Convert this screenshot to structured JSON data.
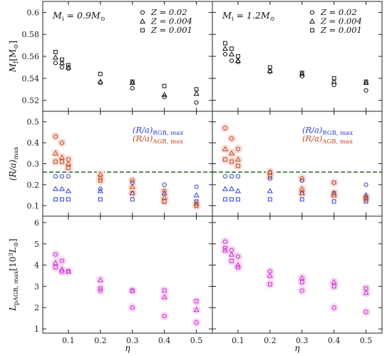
{
  "chart_data": {
    "type": "scatter",
    "x_ticks": [
      0.1,
      0.2,
      0.3,
      0.4,
      0.5
    ],
    "x_tick_labels": [
      "0.1",
      "0.2",
      "0.3",
      "0.4",
      "0.5"
    ],
    "xlabel": "η",
    "xlim": [
      0.02,
      0.55
    ],
    "columns": [
      {
        "title_main": "M",
        "title_sub": "i",
        "title_rest": " = 0.9M",
        "title_sun": "⊙"
      },
      {
        "title_main": "M",
        "title_sub": "i",
        "title_rest": " = 1.2M",
        "title_sun": "⊙"
      }
    ],
    "metallicity_legend": [
      {
        "marker": "circle",
        "label": "Z = 0.02"
      },
      {
        "marker": "triangle",
        "label": "Z = 0.004"
      },
      {
        "marker": "square",
        "label": "Z = 0.001"
      }
    ],
    "rows": [
      {
        "ylabel_main": "M",
        "ylabel_sub": "f",
        "ylabel_rest": "[M",
        "ylabel_sun": "⊙",
        "ylabel_end": "]",
        "ylim": [
          0.51,
          0.61
        ],
        "y_ticks": [
          0.52,
          0.54,
          0.56,
          0.58,
          0.6
        ],
        "y_tick_labels": [
          "0.52",
          "0.54",
          "0.56",
          "0.58",
          "0.6"
        ],
        "panels": [
          {
            "series": [
              {
                "marker": "circle",
                "color": "#111111",
                "x": [
                  0.06,
                  0.08,
                  0.1,
                  0.2,
                  0.3,
                  0.4,
                  0.5
                ],
                "y": [
                  0.554,
                  0.55,
                  0.549,
                  0.536,
                  0.531,
                  0.523,
                  0.518
                ]
              },
              {
                "marker": "triangle",
                "color": "#111111",
                "x": [
                  0.06,
                  0.08,
                  0.1,
                  0.2,
                  0.3,
                  0.4,
                  0.5
                ],
                "y": [
                  0.559,
                  0.554,
                  0.55,
                  0.537,
                  0.536,
                  0.525,
                  0.526
                ]
              },
              {
                "marker": "square",
                "color": "#111111",
                "x": [
                  0.06,
                  0.08,
                  0.1,
                  0.2,
                  0.3,
                  0.4,
                  0.5
                ],
                "y": [
                  0.564,
                  0.557,
                  0.552,
                  0.544,
                  0.537,
                  0.533,
                  0.53
                ]
              }
            ]
          },
          {
            "series": [
              {
                "marker": "circle",
                "color": "#111111",
                "x": [
                  0.06,
                  0.08,
                  0.1,
                  0.2,
                  0.3,
                  0.4,
                  0.5
                ],
                "y": [
                  0.562,
                  0.556,
                  0.555,
                  0.546,
                  0.542,
                  0.534,
                  0.529
                ]
              },
              {
                "marker": "triangle",
                "color": "#111111",
                "x": [
                  0.06,
                  0.08,
                  0.1,
                  0.2,
                  0.3,
                  0.4,
                  0.5
                ],
                "y": [
                  0.567,
                  0.562,
                  0.556,
                  0.547,
                  0.544,
                  0.537,
                  0.536
                ]
              },
              {
                "marker": "square",
                "color": "#111111",
                "x": [
                  0.06,
                  0.08,
                  0.1,
                  0.2,
                  0.3,
                  0.4,
                  0.5
                ],
                "y": [
                  0.572,
                  0.567,
                  0.56,
                  0.55,
                  0.545,
                  0.54,
                  0.537
                ]
              }
            ]
          }
        ]
      },
      {
        "ylabel_main": "(R/a)",
        "ylabel_sub": "max",
        "ylim": [
          0.05,
          0.55
        ],
        "y_ticks": [
          0.1,
          0.2,
          0.3,
          0.4,
          0.5
        ],
        "y_tick_labels": [
          "0.1",
          "0.2",
          "0.3",
          "0.4",
          "0.5"
        ],
        "hline": 0.26,
        "legend": [
          {
            "main": "(R/a)",
            "sub": "RGB, max",
            "color": "#2f3fd0"
          },
          {
            "main": "(R/a)",
            "sub": "AGB, max",
            "color": "#c24a22"
          }
        ],
        "panels": [
          {
            "series": [
              {
                "marker": "circle",
                "color": "#2f3fd0",
                "x": [
                  0.06,
                  0.08,
                  0.1,
                  0.2,
                  0.3,
                  0.4,
                  0.5
                ],
                "y": [
                  0.24,
                  0.24,
                  0.24,
                  0.18,
                  0.21,
                  0.2,
                  0.19
                ]
              },
              {
                "marker": "triangle",
                "color": "#2f3fd0",
                "x": [
                  0.06,
                  0.08,
                  0.1,
                  0.2,
                  0.3,
                  0.4,
                  0.5
                ],
                "y": [
                  0.18,
                  0.18,
                  0.17,
                  0.17,
                  0.16,
                  0.16,
                  0.15
                ]
              },
              {
                "marker": "square",
                "color": "#2f3fd0",
                "x": [
                  0.06,
                  0.08,
                  0.1,
                  0.2,
                  0.3,
                  0.4,
                  0.5
                ],
                "y": [
                  0.13,
                  0.13,
                  0.13,
                  0.13,
                  0.13,
                  0.12,
                  0.12
                ]
              },
              {
                "marker": "circle",
                "color": "#c24a22",
                "x": [
                  0.06,
                  0.08,
                  0.1,
                  0.2,
                  0.3,
                  0.4,
                  0.5
                ],
                "y": [
                  0.43,
                  0.4,
                  0.32,
                  0.23,
                  0.22,
                  0.17,
                  0.1
                ]
              },
              {
                "marker": "triangle",
                "color": "#c24a22",
                "x": [
                  0.06,
                  0.08,
                  0.1,
                  0.2,
                  0.3,
                  0.4,
                  0.5
                ],
                "y": [
                  0.35,
                  0.33,
                  0.3,
                  0.25,
                  0.19,
                  0.14,
                  0.11
                ]
              },
              {
                "marker": "square",
                "color": "#c24a22",
                "x": [
                  0.06,
                  0.08,
                  0.1,
                  0.2,
                  0.3,
                  0.4,
                  0.5
                ],
                "y": [
                  0.31,
                  0.31,
                  0.28,
                  0.22,
                  0.16,
                  0.12,
                  0.1
                ]
              }
            ]
          },
          {
            "series": [
              {
                "marker": "circle",
                "color": "#2f3fd0",
                "x": [
                  0.06,
                  0.08,
                  0.1,
                  0.2,
                  0.3,
                  0.4,
                  0.5
                ],
                "y": [
                  0.24,
                  0.24,
                  0.24,
                  0.23,
                  0.22,
                  0.21,
                  0.2
                ]
              },
              {
                "marker": "triangle",
                "color": "#2f3fd0",
                "x": [
                  0.06,
                  0.08,
                  0.1,
                  0.2,
                  0.3,
                  0.4,
                  0.5
                ],
                "y": [
                  0.18,
                  0.18,
                  0.17,
                  0.17,
                  0.16,
                  0.16,
                  0.15
                ]
              },
              {
                "marker": "square",
                "color": "#2f3fd0",
                "x": [
                  0.06,
                  0.08,
                  0.1,
                  0.2,
                  0.3,
                  0.4,
                  0.5
                ],
                "y": [
                  0.13,
                  0.13,
                  0.13,
                  0.13,
                  0.13,
                  0.12,
                  0.12
                ]
              },
              {
                "marker": "circle",
                "color": "#c24a22",
                "x": [
                  0.06,
                  0.08,
                  0.1,
                  0.2,
                  0.3,
                  0.4,
                  0.5
                ],
                "y": [
                  0.47,
                  0.42,
                  0.37,
                  0.26,
                  0.23,
                  0.21,
                  0.13
                ]
              },
              {
                "marker": "triangle",
                "color": "#c24a22",
                "x": [
                  0.06,
                  0.08,
                  0.1,
                  0.2,
                  0.3,
                  0.4,
                  0.5
                ],
                "y": [
                  0.37,
                  0.35,
                  0.32,
                  0.26,
                  0.18,
                  0.15,
                  0.14
                ]
              },
              {
                "marker": "square",
                "color": "#c24a22",
                "x": [
                  0.06,
                  0.08,
                  0.1,
                  0.2,
                  0.3,
                  0.4,
                  0.5
                ],
                "y": [
                  0.32,
                  0.31,
                  0.29,
                  0.24,
                  0.16,
                  0.16,
                  0.14
                ]
              }
            ]
          }
        ]
      },
      {
        "ylabel_main": "L",
        "ylabel_sub": "pAGB, max",
        "ylabel_rest": "[10",
        "ylabel_sup": "3",
        "ylabel_L": "L",
        "ylabel_sun": "⊙",
        "ylabel_end": "]",
        "ylim": [
          0.8,
          6.3
        ],
        "y_ticks": [
          1,
          2,
          3,
          4,
          5,
          6
        ],
        "y_tick_labels": [
          "1",
          "2",
          "3",
          "4",
          "5",
          "6"
        ],
        "panels": [
          {
            "series": [
              {
                "marker": "circle",
                "color": "#cc33cc",
                "x": [
                  0.06,
                  0.08,
                  0.1,
                  0.2,
                  0.3,
                  0.4,
                  0.5
                ],
                "y": [
                  4.5,
                  4.2,
                  3.7,
                  2.8,
                  2.0,
                  1.6,
                  1.3
                ]
              },
              {
                "marker": "triangle",
                "color": "#cc33cc",
                "x": [
                  0.06,
                  0.08,
                  0.1,
                  0.2,
                  0.3,
                  0.4,
                  0.5
                ],
                "y": [
                  4.1,
                  3.8,
                  3.7,
                  3.3,
                  2.8,
                  2.5,
                  1.9
                ]
              },
              {
                "marker": "square",
                "color": "#cc33cc",
                "x": [
                  0.06,
                  0.08,
                  0.1,
                  0.2,
                  0.3,
                  0.4,
                  0.5
                ],
                "y": [
                  3.9,
                  3.7,
                  3.7,
                  2.9,
                  2.8,
                  2.8,
                  2.3
                ]
              }
            ]
          },
          {
            "series": [
              {
                "marker": "circle",
                "color": "#cc33cc",
                "x": [
                  0.06,
                  0.08,
                  0.1,
                  0.2,
                  0.3,
                  0.4,
                  0.5
                ],
                "y": [
                  5.1,
                  4.7,
                  4.4,
                  3.7,
                  2.8,
                  2.0,
                  1.8
                ]
              },
              {
                "marker": "triangle",
                "color": "#cc33cc",
                "x": [
                  0.06,
                  0.08,
                  0.1,
                  0.2,
                  0.3,
                  0.4,
                  0.5
                ],
                "y": [
                  4.7,
                  4.5,
                  4.0,
                  3.5,
                  3.4,
                  3.2,
                  2.7
                ]
              },
              {
                "marker": "square",
                "color": "#cc33cc",
                "x": [
                  0.06,
                  0.08,
                  0.1,
                  0.2,
                  0.3,
                  0.4,
                  0.5
                ],
                "y": [
                  4.8,
                  4.2,
                  3.9,
                  3.1,
                  3.2,
                  3.0,
                  2.9
                ]
              }
            ]
          }
        ]
      }
    ]
  }
}
